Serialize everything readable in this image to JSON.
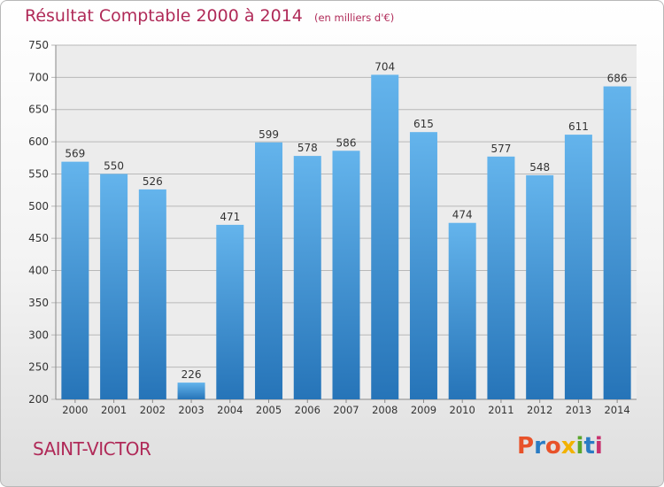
{
  "header": {
    "title": "Résultat Comptable 2000 à 2014",
    "subtitle": "(en milliers d'€)"
  },
  "footer": {
    "place": "SAINT-VICTOR",
    "logo_text": "Proxiti",
    "logo_colors": [
      "#e8522a",
      "#2a7cc4",
      "#e8522a",
      "#f2b200",
      "#5aa62c",
      "#2a7cc4",
      "#c8326e"
    ]
  },
  "colors": {
    "bar_light": "#64b4ec",
    "bar_dark": "#2674b8",
    "grid": "#b8b8b8",
    "plot_bg": "#ececec",
    "title": "#b02a58"
  },
  "chart_data": {
    "type": "bar",
    "categories": [
      "2000",
      "2001",
      "2002",
      "2003",
      "2004",
      "2005",
      "2006",
      "2007",
      "2008",
      "2009",
      "2010",
      "2011",
      "2012",
      "2013",
      "2014"
    ],
    "values": [
      569,
      550,
      526,
      226,
      471,
      599,
      578,
      586,
      704,
      615,
      474,
      577,
      548,
      611,
      686
    ],
    "ylim": [
      200,
      750
    ],
    "yticks": [
      200,
      250,
      300,
      350,
      400,
      450,
      500,
      550,
      600,
      650,
      700,
      750
    ],
    "grid": true,
    "legend": "none"
  }
}
